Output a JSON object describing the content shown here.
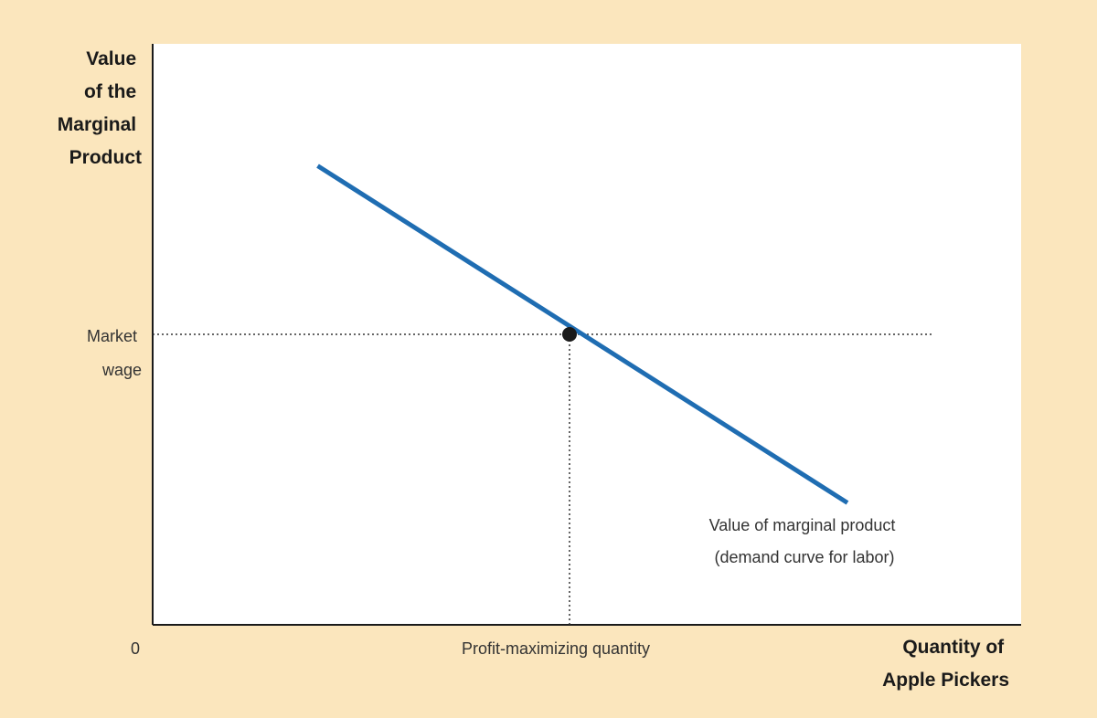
{
  "colors": {
    "page_background": "#fbe6bd",
    "plot_background": "#ffffff",
    "curve": "#1f6db2",
    "point": "#1a1a1a",
    "text": "#1a1a1a"
  },
  "chart_data": {
    "type": "line",
    "title": "",
    "ylabel_lines": [
      "Value",
      "of the",
      "Marginal",
      "Product"
    ],
    "xlabel_lines": [
      "Quantity of",
      "Apple Pickers"
    ],
    "origin_label": "0",
    "x_tick_label": "Profit-maximizing quantity",
    "y_tick_label_lines": [
      "Market",
      "wage"
    ],
    "xlim": [
      0,
      10
    ],
    "ylim": [
      0,
      10
    ],
    "grid": false,
    "series": [
      {
        "name": "Value of marginal product (demand curve for labor)",
        "label_lines": [
          "Value of marginal product",
          "(demand curve for labor)"
        ],
        "x": [
          1.9,
          8.0
        ],
        "y": [
          7.9,
          2.1
        ]
      }
    ],
    "point": {
      "x": 4.8,
      "y": 5.0
    },
    "reference_lines": {
      "horizontal": {
        "y": 5.0,
        "x_start": 0,
        "x_end": 9.0
      },
      "vertical": {
        "x": 4.8,
        "y_start": 0,
        "y_end": 5.0
      }
    }
  }
}
